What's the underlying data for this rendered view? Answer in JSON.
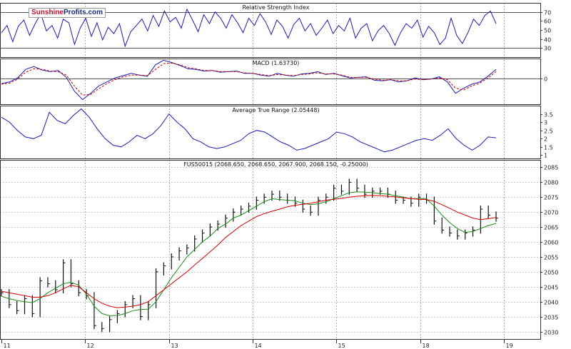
{
  "chart_data": [
    {
      "panel": "rsi",
      "type": "line",
      "title": "Relative Strength Index",
      "y_ticks": [
        70,
        60,
        50,
        40,
        30
      ],
      "reference_lines": [
        70,
        30
      ],
      "ylim": [
        20,
        80
      ],
      "color": "#1c1cb0",
      "series": [
        {
          "values": [
            47,
            55,
            37,
            54,
            61,
            44,
            57,
            68,
            49,
            55,
            41,
            62,
            58,
            34,
            52,
            63,
            43,
            58,
            39,
            53,
            46,
            57,
            32,
            48,
            55,
            62,
            49,
            66,
            54,
            71,
            59,
            64,
            52,
            73,
            61,
            48,
            67,
            57,
            70,
            63,
            52,
            67,
            58,
            47,
            63,
            55,
            68,
            59,
            45,
            61,
            54,
            41,
            56,
            63,
            49,
            57,
            44,
            52,
            61,
            46,
            55,
            49,
            63,
            41,
            52,
            57,
            38,
            49,
            55,
            46,
            33,
            47,
            57,
            52,
            61,
            42,
            54,
            47,
            34,
            41,
            63,
            44,
            35,
            47,
            62,
            55,
            66,
            71,
            57
          ]
        }
      ]
    },
    {
      "panel": "macd",
      "type": "line",
      "title": "MACD (1.63730)",
      "y_ticks": [
        0
      ],
      "ylim": [
        -4.5,
        3.5
      ],
      "series": [
        {
          "values": [
            -0.9,
            -0.6,
            0.1,
            1.6,
            2.1,
            1.5,
            1.2,
            1.4,
            0.2,
            -2.2,
            -3.7,
            -2.6,
            -1.3,
            -0.6,
            0.1,
            0.5,
            0.9,
            0.6,
            0.4,
            2.4,
            3.2,
            2.8,
            2.3,
            1.7,
            1.6,
            1.3,
            1.4,
            1.1,
            1.2,
            1.3,
            0.9,
            0.9,
            0.6,
            0.4,
            0.9,
            0.6,
            0.4,
            0.8,
            0.9,
            1.2,
            0.7,
            0.9,
            0.5,
            0.1,
            0.2,
            0.3,
            -0.3,
            -0.4,
            -0.2,
            -0.6,
            -0.4,
            0.1,
            -0.2,
            -0.1,
            0.3,
            -0.6,
            -2.6,
            -1.7,
            -1.0,
            -0.6,
            0.4,
            1.6
          ],
          "color": "#1c1cb0",
          "style": "solid"
        },
        {
          "values": [
            -1.0,
            -0.8,
            -0.1,
            1.1,
            1.7,
            1.6,
            1.3,
            1.2,
            0.6,
            -1.3,
            -2.9,
            -2.8,
            -1.8,
            -0.9,
            -0.2,
            0.3,
            0.6,
            0.6,
            0.5,
            1.6,
            2.6,
            2.7,
            2.4,
            1.9,
            1.7,
            1.4,
            1.4,
            1.2,
            1.2,
            1.2,
            1.0,
            0.9,
            0.7,
            0.5,
            0.7,
            0.6,
            0.5,
            0.7,
            0.8,
            1.0,
            0.8,
            0.8,
            0.6,
            0.2,
            0.2,
            0.2,
            -0.1,
            -0.3,
            -0.2,
            -0.4,
            -0.4,
            -0.1,
            -0.2,
            -0.1,
            0.1,
            -0.2,
            -1.7,
            -2.0,
            -1.3,
            -0.8,
            0.1,
            1.2
          ],
          "color": "#cc0000",
          "style": "dashed"
        }
      ]
    },
    {
      "panel": "atr",
      "type": "line",
      "title": "Average True Range (2.05448)",
      "y_ticks": [
        3.5,
        3.0,
        2.5,
        2.0,
        1.5,
        1.0
      ],
      "ylim": [
        0.8,
        4.0
      ],
      "color": "#1c1cb0",
      "series": [
        {
          "values": [
            3.3,
            3.0,
            2.5,
            2.1,
            2.0,
            2.2,
            3.6,
            3.1,
            2.9,
            3.4,
            3.8,
            3.3,
            2.6,
            2.0,
            1.6,
            1.5,
            1.8,
            2.2,
            2.0,
            2.3,
            2.8,
            3.5,
            3.0,
            2.6,
            2.0,
            1.8,
            1.5,
            1.4,
            1.5,
            1.7,
            1.9,
            2.3,
            2.5,
            2.4,
            2.1,
            1.8,
            1.6,
            1.3,
            1.4,
            1.6,
            1.8,
            2.0,
            2.4,
            2.3,
            2.1,
            1.8,
            1.6,
            1.4,
            1.2,
            1.3,
            1.5,
            1.7,
            1.9,
            2.0,
            1.9,
            2.2,
            2.6,
            2.0,
            1.6,
            1.3,
            1.6,
            2.1,
            2.05
          ]
        }
      ]
    },
    {
      "panel": "price",
      "type": "line",
      "title": "FUS50015 (2068.650, 2068.650, 2067.900, 2068.150, -0.25000)",
      "y_ticks": [
        2085,
        2080,
        2075,
        2070,
        2065,
        2060,
        2055,
        2050,
        2045,
        2040,
        2035,
        2030
      ],
      "ylim": [
        2027.5,
        2087.5
      ],
      "x_tick_labels": [
        "11",
        "12",
        "13",
        "14",
        "15",
        "18",
        "19"
      ],
      "series": [
        {
          "name": "",
          "values": [
            2043,
            2039,
            2037,
            2041,
            2036,
            2047,
            2046,
            2044,
            2053,
            2046,
            2043,
            2042,
            2032,
            2031,
            2034,
            2036,
            2039,
            2041,
            2035,
            2039,
            2050,
            2052,
            2055,
            2057,
            2058,
            2061,
            2063,
            2065,
            2066,
            2068,
            2070,
            2071,
            2072,
            2074,
            2075,
            2076,
            2075,
            2074,
            2073,
            2071,
            2070,
            2074,
            2075,
            2078,
            2077,
            2080,
            2078,
            2076,
            2077,
            2077,
            2076,
            2074,
            2074,
            2073,
            2075,
            2074,
            2067,
            2064,
            2063,
            2062,
            2063,
            2064,
            2071,
            2069,
            2068
          ],
          "color": "#111111",
          "style": "bars"
        },
        {
          "name": "",
          "values": [
            2041.8,
            2041,
            2040.4,
            2040,
            2039.7,
            2041,
            2043,
            2044.5,
            2046,
            2046.5,
            2045.5,
            2042.5,
            2038.5,
            2036,
            2035.3,
            2035.4,
            2036,
            2037,
            2037.4,
            2037.5,
            2040,
            2044,
            2048,
            2051.5,
            2055,
            2057.5,
            2060,
            2062,
            2064.5,
            2066,
            2068,
            2069,
            2070.5,
            2072,
            2073.5,
            2074.5,
            2074.2,
            2074,
            2073.8,
            2073,
            2072.5,
            2072.8,
            2073.5,
            2074.5,
            2075.5,
            2076.5,
            2076.8,
            2076.7,
            2076.5,
            2076.2,
            2076,
            2075.5,
            2075,
            2074.5,
            2074.5,
            2074.4,
            2072,
            2069,
            2066.5,
            2064.5,
            2063.2,
            2063.5,
            2064.5,
            2065.5,
            2066.2
          ],
          "color": "#1a8c1a",
          "style": "solid"
        },
        {
          "name": "",
          "values": [
            2043.5,
            2043,
            2042.5,
            2042,
            2041.5,
            2041.5,
            2042,
            2043,
            2044.3,
            2045.5,
            2045,
            2043,
            2041,
            2039.5,
            2038.5,
            2038,
            2038.2,
            2038.5,
            2039,
            2040,
            2042,
            2044,
            2046,
            2048,
            2050,
            2052.3,
            2054.5,
            2056.7,
            2059,
            2061.5,
            2063.5,
            2065.5,
            2067,
            2068.5,
            2069.5,
            2070.3,
            2071,
            2071.8,
            2072.3,
            2072.6,
            2073,
            2073.5,
            2074,
            2074.3,
            2074.6,
            2075,
            2075.3,
            2075.5,
            2075.6,
            2075.5,
            2075.3,
            2075.1,
            2074.8,
            2074.5,
            2074.3,
            2074.2,
            2073.6,
            2072.5,
            2071.3,
            2070,
            2069,
            2068,
            2067.5,
            2067.8,
            2068.2
          ],
          "color": "#d40000",
          "style": "solid"
        }
      ]
    }
  ],
  "logo": {
    "part1": "Sunshine",
    "part2": "Profits.com"
  }
}
